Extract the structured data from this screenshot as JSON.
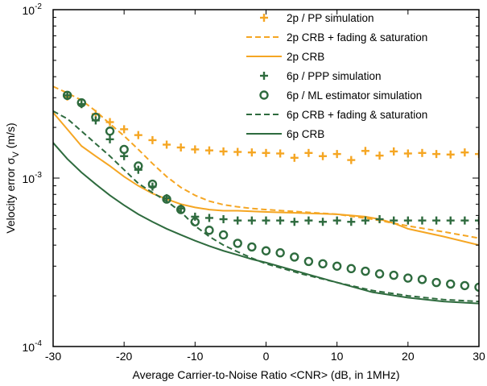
{
  "chart_data": {
    "type": "line",
    "title": "",
    "xlabel": "Average Carrier-to-Noise Ratio <CNR> (dB, in 1MHz)",
    "ylabel": "Velocity error σ",
    "ylabel_sub": "V",
    "ylabel_unit": " (m/s)",
    "xlim": [
      -30,
      30
    ],
    "ylim": [
      0.0001,
      0.01
    ],
    "yscale": "log",
    "grid": false,
    "legend_position": "top-right",
    "x_ticks": [
      "-30",
      "-20",
      "-10",
      "0",
      "10",
      "20",
      "30"
    ],
    "y_ticks": [
      {
        "base": "10",
        "exp": "-4"
      },
      {
        "base": "10",
        "exp": "-3"
      },
      {
        "base": "10",
        "exp": "-2"
      }
    ],
    "colors": {
      "orange": "#F5A623",
      "green": "#2E6B3E"
    },
    "series": [
      {
        "name": "2p / PP simulation",
        "style": "plus",
        "color": "#F5A623",
        "x": [
          -28,
          -26,
          -24,
          -22,
          -20,
          -18,
          -16,
          -14,
          -12,
          -10,
          -8,
          -6,
          -4,
          -2,
          0,
          2,
          4,
          6,
          8,
          10,
          12,
          14,
          16,
          18,
          20,
          22,
          24,
          26,
          28,
          30
        ],
        "y": [
          0.00305,
          0.00275,
          0.0024,
          0.00215,
          0.00195,
          0.0018,
          0.00168,
          0.00158,
          0.00152,
          0.00148,
          0.00146,
          0.00144,
          0.00143,
          0.00142,
          0.00141,
          0.0014,
          0.00132,
          0.00141,
          0.00135,
          0.00139,
          0.00128,
          0.00145,
          0.00136,
          0.00144,
          0.0014,
          0.00141,
          0.00139,
          0.00138,
          0.00142,
          0.00139
        ]
      },
      {
        "name": "2p CRB + fading & saturation",
        "style": "dashed",
        "color": "#F5A623",
        "x": [
          -30,
          -28,
          -26,
          -24,
          -22,
          -20,
          -18,
          -16,
          -14,
          -12,
          -10,
          -8,
          -6,
          -4,
          -2,
          0,
          5,
          10,
          15,
          20,
          25,
          30
        ],
        "y": [
          0.0035,
          0.0032,
          0.0029,
          0.0025,
          0.0021,
          0.00178,
          0.00148,
          0.00122,
          0.00102,
          0.00088,
          0.00079,
          0.00073,
          0.000695,
          0.000675,
          0.00066,
          0.00065,
          0.00063,
          0.00061,
          0.00057,
          0.00052,
          0.00048,
          0.00044
        ]
      },
      {
        "name": "2p CRB",
        "style": "solid",
        "color": "#F5A623",
        "x": [
          -30,
          -28,
          -26,
          -24,
          -22,
          -20,
          -18,
          -16,
          -14,
          -12,
          -10,
          -8,
          -6,
          -4,
          0,
          5,
          10,
          14,
          16,
          18,
          20,
          25,
          30
        ],
        "y": [
          0.00245,
          0.00195,
          0.00155,
          0.00135,
          0.00118,
          0.00102,
          0.0009,
          0.00081,
          0.00075,
          0.0007,
          0.00067,
          0.00065,
          0.00064,
          0.00064,
          0.00063,
          0.00062,
          0.00061,
          0.00059,
          0.00057,
          0.00054,
          0.0005,
          0.00045,
          0.0004
        ]
      },
      {
        "name": "6p / PPP simulation",
        "style": "plus",
        "color": "#2E6B3E",
        "x": [
          -28,
          -26,
          -24,
          -22,
          -20,
          -18,
          -16,
          -14,
          -12,
          -10,
          -8,
          -6,
          -4,
          -2,
          0,
          2,
          4,
          6,
          8,
          10,
          12,
          14,
          16,
          18,
          20,
          22,
          24,
          26,
          28,
          30
        ],
        "y": [
          0.0031,
          0.00275,
          0.0022,
          0.0017,
          0.00135,
          0.00112,
          0.00089,
          0.00076,
          0.00066,
          0.00059,
          0.00058,
          0.00057,
          0.00056,
          0.00056,
          0.00056,
          0.00056,
          0.00055,
          0.00056,
          0.00055,
          0.00056,
          0.00055,
          0.00056,
          0.00057,
          0.00056,
          0.00056,
          0.00056,
          0.00056,
          0.00056,
          0.00056,
          0.00056
        ]
      },
      {
        "name": "6p / ML estimator simulation",
        "style": "circle",
        "color": "#2E6B3E",
        "x": [
          -28,
          -26,
          -24,
          -22,
          -20,
          -18,
          -16,
          -14,
          -12,
          -10,
          -8,
          -6,
          -4,
          -2,
          0,
          2,
          4,
          6,
          8,
          10,
          12,
          14,
          16,
          18,
          20,
          22,
          24,
          26,
          28,
          30
        ],
        "y": [
          0.0031,
          0.0028,
          0.0023,
          0.0019,
          0.00148,
          0.00118,
          0.00092,
          0.00075,
          0.00065,
          0.00055,
          0.00049,
          0.00046,
          0.00041,
          0.00039,
          0.00037,
          0.00036,
          0.00034,
          0.00032,
          0.00031,
          0.0003,
          0.00029,
          0.00028,
          0.00027,
          0.000265,
          0.000255,
          0.00025,
          0.00024,
          0.000235,
          0.00023,
          0.000225
        ]
      },
      {
        "name": "6p CRB + fading & saturation",
        "style": "dashed",
        "color": "#2E6B3E",
        "x": [
          -30,
          -28,
          -26,
          -24,
          -22,
          -20,
          -18,
          -16,
          -14,
          -12,
          -10,
          -8,
          -6,
          -4,
          -2,
          0,
          5,
          10,
          15,
          20,
          25,
          30
        ],
        "y": [
          0.0025,
          0.00225,
          0.0019,
          0.0016,
          0.00135,
          0.00112,
          0.00093,
          0.00082,
          0.00073,
          0.00063,
          0.00052,
          0.00045,
          0.0004,
          0.000365,
          0.000335,
          0.00031,
          0.00027,
          0.00024,
          0.000215,
          0.0002,
          0.00019,
          0.000185
        ]
      },
      {
        "name": "6p CRB",
        "style": "solid",
        "color": "#2E6B3E",
        "x": [
          -30,
          -28,
          -26,
          -24,
          -22,
          -20,
          -18,
          -16,
          -14,
          -12,
          -10,
          -8,
          -6,
          -4,
          -2,
          0,
          5,
          10,
          15,
          20,
          25,
          30
        ],
        "y": [
          0.00162,
          0.0013,
          0.00108,
          0.00092,
          0.00079,
          0.00069,
          0.00061,
          0.00055,
          0.0005,
          0.00046,
          0.000425,
          0.000395,
          0.00037,
          0.00035,
          0.00033,
          0.000315,
          0.000275,
          0.00024,
          0.00021,
          0.000195,
          0.000185,
          0.00018
        ]
      }
    ]
  }
}
